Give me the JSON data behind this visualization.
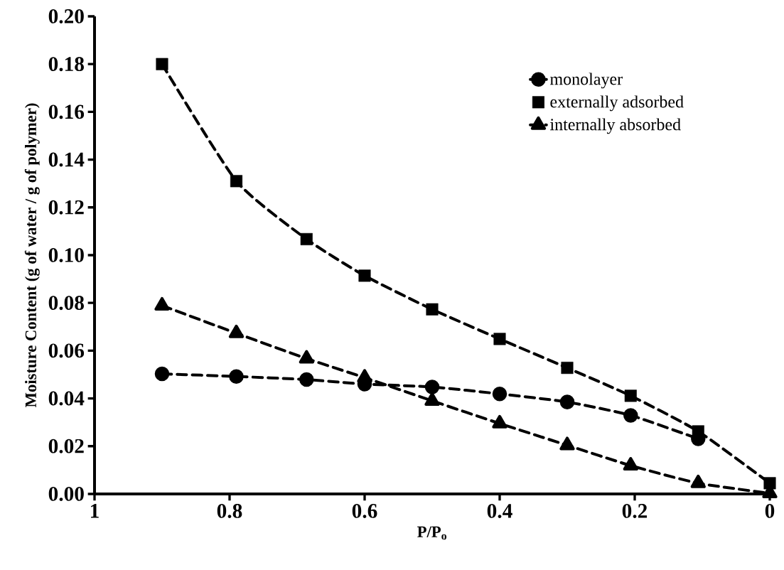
{
  "chart_data": {
    "type": "line",
    "xlabel": "P/P$_{o}$",
    "ylabel": "Moisture Content (g of water / g of polymer)",
    "x": [
      0.9,
      0.79,
      0.686,
      0.6,
      0.5,
      0.4,
      0.3,
      0.206,
      0.106,
      0.0
    ],
    "series": [
      {
        "name": "monolayer",
        "color": "#000000",
        "marker": "circle",
        "line_style": "dashed",
        "values": [
          0.0503,
          0.0492,
          0.0479,
          0.046,
          0.0448,
          0.0419,
          0.0385,
          0.0329,
          0.0231,
          null
        ]
      },
      {
        "name": "externally adsorbed",
        "type": "scatter",
        "color": "#000000",
        "marker": "square",
        "values": [
          0.18,
          0.131,
          0.1067,
          0.0914,
          0.0773,
          0.0649,
          0.0528,
          0.0411,
          0.0262,
          0.0045
        ]
      },
      {
        "name": "internally absorbed",
        "color": "#000000",
        "marker": "triangle",
        "line_style": "dashed",
        "values": [
          0.0789,
          0.0673,
          0.0567,
          0.0487,
          0.039,
          0.0295,
          0.0204,
          0.0119,
          0.0045,
          0.0003
        ]
      },
      {
        "color": "#000000",
        "marker": "none",
        "line_style": "dashed",
        "values": [
          0.18,
          0.131,
          0.1067,
          0.0914,
          0.0773,
          0.0649,
          0.0528,
          0.0411,
          0.0262,
          0.0045
        ]
      }
    ],
    "xlim": [
      1,
      0
    ],
    "xticks": [
      1,
      0.8,
      0.6,
      0.4,
      0.2,
      0
    ],
    "ylim": [
      0,
      0.2
    ],
    "yticks": [
      {
        "value": 0,
        "label": "0.00"
      },
      {
        "value": 0.02,
        "label": "0.02"
      },
      {
        "value": 0.04,
        "label": "0.04"
      },
      {
        "value": 0.06,
        "label": "0.06"
      },
      {
        "value": 0.08,
        "label": "0.08"
      },
      {
        "value": 0.1,
        "label": "0.10"
      },
      {
        "value": 0.12,
        "label": "0.12"
      },
      {
        "value": 0.14,
        "label": "0.14"
      },
      {
        "value": 0.16,
        "label": "0.16"
      },
      {
        "value": 0.18,
        "label": "0.18"
      },
      {
        "value": 0.2,
        "label": "0.20"
      }
    ],
    "grid": false,
    "legend": "top right"
  }
}
